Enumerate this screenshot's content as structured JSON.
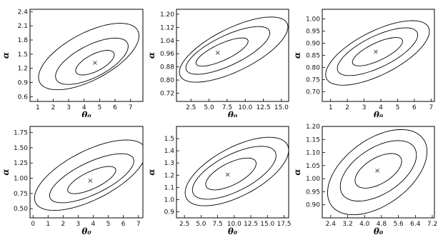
{
  "chart_data": [
    {
      "type": "contour",
      "xlabel": "θ₀",
      "ylabel": "α",
      "xlim": [
        0.5,
        7.8
      ],
      "ylim": [
        0.5,
        2.45
      ],
      "xticks": [
        "1",
        "2",
        "3",
        "4",
        "5",
        "6",
        "7"
      ],
      "yticks": [
        "0.6",
        "0.9",
        "1.2",
        "1.5",
        "1.8",
        "2.1",
        "2.4"
      ],
      "best_fit": {
        "x": 4.7,
        "y": 1.32,
        "marker": "×"
      },
      "contours": [
        {
          "cx": 4.7,
          "cy": 1.32,
          "rx": 1.25,
          "ry": 0.09
        },
        {
          "cx": 4.5,
          "cy": 1.35,
          "rx": 2.35,
          "ry": 0.17
        },
        {
          "cx": 4.3,
          "cy": 1.45,
          "rx": 3.25,
          "ry": 0.25
        }
      ]
    },
    {
      "type": "contour",
      "xlabel": "θ₀",
      "ylabel": "α",
      "xlim": [
        0.5,
        16.0
      ],
      "ylim": [
        0.67,
        1.23
      ],
      "xticks": [
        "2.5",
        "5.0",
        "7.5",
        "10.0",
        "12.5",
        "15.0"
      ],
      "yticks": [
        "0.72",
        "0.80",
        "0.88",
        "0.96",
        "1.04",
        "1.12",
        "1.20"
      ],
      "best_fit": {
        "x": 6.2,
        "y": 0.965,
        "marker": "×"
      },
      "contours": [
        {
          "cx": 6.8,
          "cy": 0.97,
          "rx": 3.6,
          "ry": 0.025
        },
        {
          "cx": 7.6,
          "cy": 0.98,
          "rx": 5.8,
          "ry": 0.045
        },
        {
          "cx": 8.4,
          "cy": 0.985,
          "rx": 7.5,
          "ry": 0.065
        }
      ]
    },
    {
      "type": "contour",
      "xlabel": "θ₀",
      "ylabel": "α",
      "xlim": [
        0.5,
        7.2
      ],
      "ylim": [
        0.66,
        1.04
      ],
      "xticks": [
        "1",
        "2",
        "3",
        "4",
        "5",
        "6",
        "7"
      ],
      "yticks": [
        "0.70",
        "0.75",
        "0.80",
        "0.85",
        "0.90",
        "0.95",
        "1.00"
      ],
      "best_fit": {
        "x": 3.7,
        "y": 0.865,
        "marker": "×"
      },
      "contours": [
        {
          "cx": 3.8,
          "cy": 0.865,
          "rx": 1.5,
          "ry": 0.018
        },
        {
          "cx": 3.8,
          "cy": 0.865,
          "rx": 2.4,
          "ry": 0.032
        },
        {
          "cx": 3.8,
          "cy": 0.86,
          "rx": 3.1,
          "ry": 0.045
        }
      ]
    },
    {
      "type": "contour",
      "xlabel": "θ₀",
      "ylabel": "α",
      "xlim": [
        -0.2,
        7.3
      ],
      "ylim": [
        0.35,
        1.85
      ],
      "xticks": [
        "0",
        "1",
        "2",
        "3",
        "4",
        "5",
        "6",
        "7"
      ],
      "yticks": [
        "0.50",
        "0.75",
        "1.00",
        "1.25",
        "1.50",
        "1.75"
      ],
      "best_fit": {
        "x": 3.8,
        "y": 0.96,
        "marker": "×"
      },
      "contours": [
        {
          "cx": 3.9,
          "cy": 0.97,
          "rx": 1.6,
          "ry": 0.07
        },
        {
          "cx": 3.9,
          "cy": 1.0,
          "rx": 2.8,
          "ry": 0.13
        },
        {
          "cx": 3.8,
          "cy": 1.05,
          "rx": 3.7,
          "ry": 0.2
        }
      ]
    },
    {
      "type": "contour",
      "xlabel": "θ₀",
      "ylabel": "α",
      "xlim": [
        1.3,
        18.2
      ],
      "ylim": [
        0.85,
        1.6
      ],
      "xticks": [
        "2.5",
        "5.0",
        "7.5",
        "10.0",
        "12.5",
        "15.0",
        "17.5"
      ],
      "yticks": [
        "0.9",
        "1.0",
        "1.1",
        "1.2",
        "1.3",
        "1.4",
        "1.5"
      ],
      "best_fit": {
        "x": 9.0,
        "y": 1.205,
        "marker": "×"
      },
      "contours": [
        {
          "cx": 9.5,
          "cy": 1.21,
          "rx": 3.8,
          "ry": 0.045
        },
        {
          "cx": 10.0,
          "cy": 1.22,
          "rx": 6.3,
          "ry": 0.075
        },
        {
          "cx": 10.4,
          "cy": 1.23,
          "rx": 7.8,
          "ry": 0.1
        }
      ]
    },
    {
      "type": "contour",
      "xlabel": "θ₀",
      "ylabel": "α",
      "xlim": [
        2.0,
        7.3
      ],
      "ylim": [
        0.85,
        1.2
      ],
      "xticks": [
        "2.4",
        "3.2",
        "4.0",
        "4.8",
        "5.6",
        "6.4",
        "7.2"
      ],
      "yticks": [
        "0.90",
        "0.95",
        "1.00",
        "1.05",
        "1.10",
        "1.15",
        "1.20"
      ],
      "best_fit": {
        "x": 4.6,
        "y": 1.03,
        "marker": "×"
      },
      "contours": [
        {
          "cx": 4.65,
          "cy": 1.03,
          "rx": 1.1,
          "ry": 0.025
        },
        {
          "cx": 4.65,
          "cy": 1.03,
          "rx": 1.8,
          "ry": 0.045
        },
        {
          "cx": 4.6,
          "cy": 1.025,
          "rx": 2.35,
          "ry": 0.065
        }
      ]
    }
  ]
}
